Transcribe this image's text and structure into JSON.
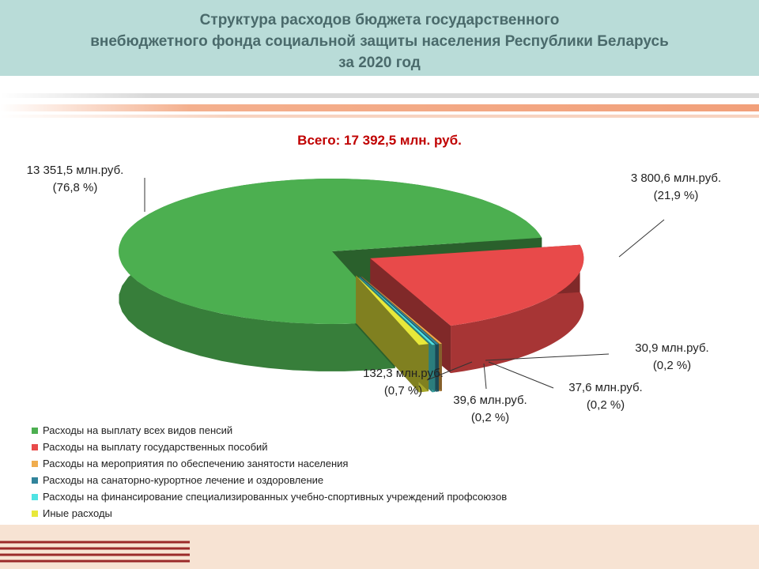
{
  "slide": {
    "title_lines": [
      "Структура расходов бюджета государственного",
      "внебюджетного фонда социальной защиты населения Республики Беларусь",
      "за 2020 год"
    ],
    "total": "Всего: 17 392,5 млн. руб."
  },
  "colors": {
    "header_bg": "#b9dcd8",
    "title_text": "#4a6a6b",
    "total_text": "#c00000",
    "stripe": "#f2a07a"
  },
  "chart_data": {
    "type": "pie",
    "style": "3d-exploded",
    "total_label": "Всего: 17 392,5 млн. руб.",
    "unit": "млн. руб.",
    "slices": [
      {
        "name": "Расходы на выплату всех видов пенсий",
        "value": 13351.5,
        "percent": 76.8,
        "value_label": "13 351,5 млн.руб.",
        "percent_label": "(76,8 %)",
        "color": "#4caf50"
      },
      {
        "name": "Расходы на выплату государственных пособий",
        "value": 3800.6,
        "percent": 21.9,
        "value_label": "3 800,6 млн.руб.",
        "percent_label": "(21,9 %)",
        "color": "#e84a4a"
      },
      {
        "name": "Расходы на мероприятия по обеспечению занятости населения",
        "value": 30.9,
        "percent": 0.2,
        "value_label": "30,9 млн.руб.",
        "percent_label": "(0,2 %)",
        "color": "#f0ad4e"
      },
      {
        "name": "Расходы на санаторно-курортное лечение и оздоровление",
        "value": 37.6,
        "percent": 0.2,
        "value_label": "37,6 млн.руб.",
        "percent_label": "(0,2 %)",
        "color": "#31849b"
      },
      {
        "name": "Расходы на финансирование  специализированных  учебно-спортивных  учреждений  профсоюзов",
        "value": 39.6,
        "percent": 0.2,
        "value_label": "39,6 млн.руб.",
        "percent_label": "(0,2 %)",
        "color": "#4fe3e3"
      },
      {
        "name": "Иные расходы",
        "value": 132.3,
        "percent": 0.7,
        "value_label": "132,3 млн.руб.",
        "percent_label": "(0,7 %)",
        "color": "#e8e83a"
      }
    ],
    "legend_position": "bottom-left"
  }
}
